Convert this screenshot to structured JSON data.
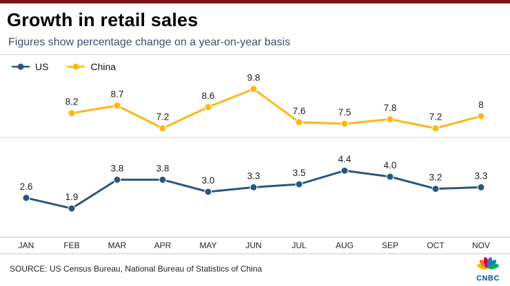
{
  "header": {
    "title": "Growth in retail sales",
    "subtitle": "Figures show percentage change on a year-on-year basis"
  },
  "chart_data": {
    "type": "line",
    "title": "Growth in retail sales",
    "subtitle": "Figures show percentage change on a year-on-year basis",
    "categories": [
      "JAN",
      "FEB",
      "MAR",
      "APR",
      "MAY",
      "JUN",
      "JUL",
      "AUG",
      "SEP",
      "OCT",
      "NOV"
    ],
    "series": [
      {
        "name": "US",
        "color": "#28567F",
        "values": [
          2.6,
          1.9,
          3.8,
          3.8,
          3.0,
          3.3,
          3.5,
          4.4,
          4.0,
          3.2,
          3.3
        ],
        "labels": [
          "2.6",
          "1.9",
          "3.8",
          "3.8",
          "3.0",
          "3.3",
          "3.5",
          "4.4",
          "4.0",
          "3.2",
          "3.3"
        ]
      },
      {
        "name": "China",
        "color": "#FDB813",
        "values": [
          null,
          8.2,
          8.7,
          7.2,
          8.6,
          9.8,
          7.6,
          7.5,
          7.8,
          7.2,
          8
        ],
        "labels": [
          "",
          "8.2",
          "8.7",
          "7.2",
          "8.6",
          "9.8",
          "7.6",
          "7.5",
          "7.8",
          "7.2",
          "8"
        ]
      }
    ],
    "xlabel": "",
    "ylabel": "",
    "unit": "percent",
    "ylim": [
      0,
      10.5
    ],
    "grid": "on",
    "legend_position": "top-left"
  },
  "source": {
    "text": "SOURCE: US Census Bureau, National Bureau of Statistics of China"
  },
  "brand": {
    "logo_text": "CNBC",
    "logo_icon": "peacock-icon",
    "logo_color": "#005594"
  },
  "colors": {
    "top_bar": "#7A1113",
    "us": "#28567F",
    "china": "#FDB813",
    "gridline": "#d9d9d9"
  }
}
